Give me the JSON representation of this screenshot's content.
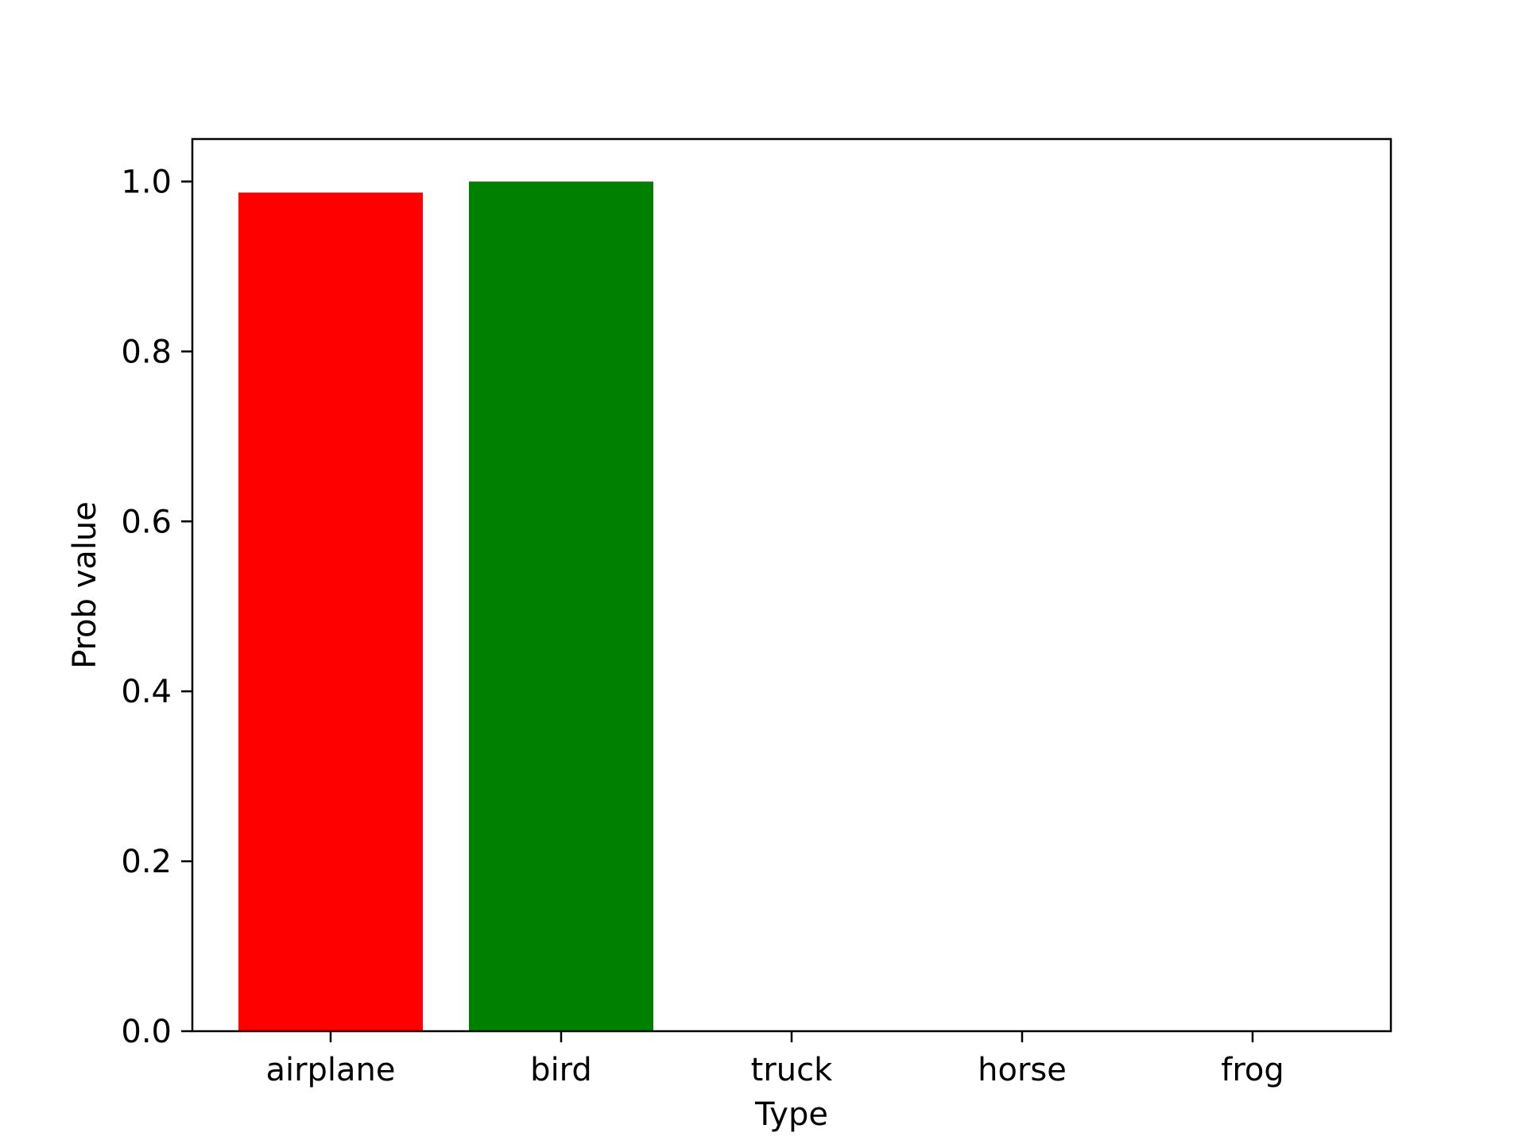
{
  "chart_data": {
    "type": "bar",
    "title": "",
    "xlabel": "Type",
    "ylabel": "Prob value",
    "categories": [
      "airplane",
      "bird",
      "truck",
      "horse",
      "frog"
    ],
    "values": [
      0.987,
      1.0,
      0.0,
      0.0,
      0.0
    ],
    "bar_colors": [
      "#ff0000",
      "#008000",
      "#1f77b4",
      "#1f77b4",
      "#1f77b4"
    ],
    "ylim": [
      0,
      1.05
    ],
    "yticks": [
      0.0,
      0.2,
      0.4,
      0.6,
      0.8,
      1.0
    ],
    "ytick_labels": [
      "0.0",
      "0.2",
      "0.4",
      "0.6",
      "0.8",
      "1.0"
    ],
    "grid": false,
    "legend": "none"
  }
}
